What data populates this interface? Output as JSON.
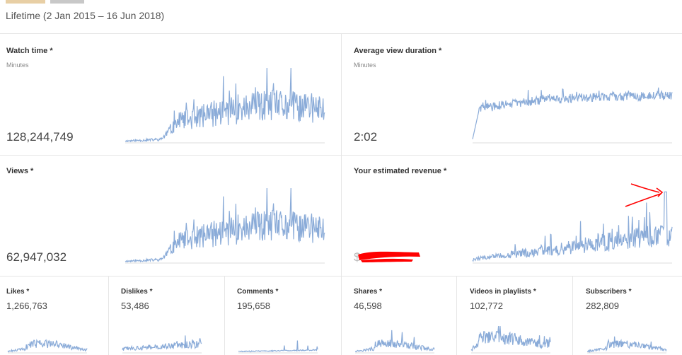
{
  "header": {
    "date_range": "Lifetime (2 Jan 2015 – 16 Jun 2018)"
  },
  "metrics_large": [
    {
      "title": "Watch time *",
      "unit": "Minutes",
      "value": "128,244,749"
    },
    {
      "title": "Average view duration *",
      "unit": "Minutes",
      "value": "2:02"
    },
    {
      "title": "Views *",
      "unit": "",
      "value": "62,947,032"
    },
    {
      "title": "Your estimated revenue *",
      "unit": "",
      "value": "$"
    }
  ],
  "metrics_small": [
    {
      "title": "Likes *",
      "value": "1,266,763"
    },
    {
      "title": "Dislikes *",
      "value": "53,486"
    },
    {
      "title": "Comments *",
      "value": "195,658"
    },
    {
      "title": "Shares *",
      "value": "46,598"
    },
    {
      "title": "Videos in playlists *",
      "value": "102,772"
    },
    {
      "title": "Subscribers *",
      "value": "282,809"
    }
  ],
  "colors": {
    "sparkline": "#8aabd8",
    "redaction": "#ff0000",
    "annotation_arrow": "#ff0000"
  }
}
